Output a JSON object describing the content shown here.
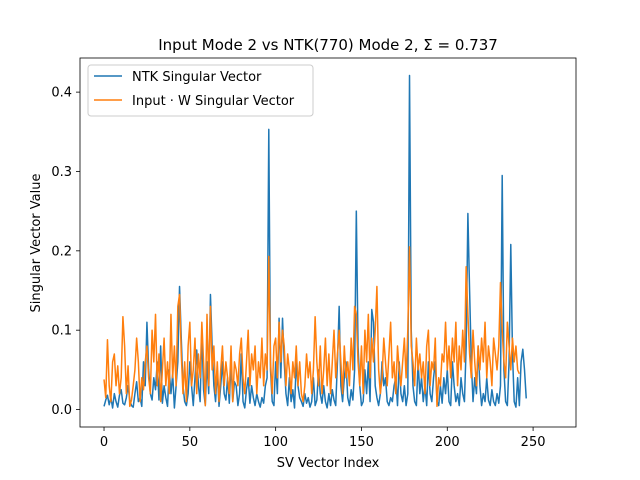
{
  "chart_data": {
    "type": "line",
    "title": "Input Mode 2 vs NTK(770) Mode 2, Σ =  0.737",
    "xlabel": "SV Vector Index",
    "ylabel": "Singular Vector Value",
    "xlim": [
      -14,
      275
    ],
    "ylim": [
      -0.022,
      0.443
    ],
    "xticks": [
      0,
      50,
      100,
      150,
      200,
      250
    ],
    "yticks": [
      0.0,
      0.1,
      0.2,
      0.3,
      0.4
    ],
    "xtick_labels": [
      "0",
      "50",
      "100",
      "150",
      "200",
      "250"
    ],
    "ytick_labels": [
      "0.0",
      "0.1",
      "0.2",
      "0.3",
      "0.4"
    ],
    "legend_position": "upper-left",
    "series": [
      {
        "name": "NTK Singular Vector",
        "color": "#1f77b4",
        "x_start": 0,
        "values": [
          0.004,
          0.012,
          0.018,
          0.006,
          0.015,
          0.002,
          0.02,
          0.01,
          0.003,
          0.018,
          0.025,
          0.008,
          0.006,
          0.015,
          0.03,
          0.012,
          0.005,
          0.003,
          0.02,
          0.035,
          0.01,
          0.015,
          0.004,
          0.06,
          0.03,
          0.11,
          0.05,
          0.02,
          0.012,
          0.04,
          0.025,
          0.06,
          0.012,
          0.08,
          0.008,
          0.03,
          0.015,
          0.004,
          0.05,
          0.02,
          0.045,
          0.002,
          0.03,
          0.06,
          0.155,
          0.09,
          0.03,
          0.01,
          0.005,
          0.02,
          0.06,
          0.03,
          0.005,
          0.04,
          0.075,
          0.03,
          0.01,
          0.1,
          0.025,
          0.005,
          0.06,
          0.02,
          0.145,
          0.08,
          0.03,
          0.01,
          0.05,
          0.004,
          0.03,
          0.06,
          0.02,
          0.012,
          0.04,
          0.008,
          0.06,
          0.01,
          0.035,
          0.03,
          0.005,
          0.02,
          0.07,
          0.01,
          0.002,
          0.025,
          0.04,
          0.008,
          0.03,
          0.015,
          0.005,
          0.02,
          0.01,
          0.003,
          0.015,
          0.008,
          0.03,
          0.04,
          0.353,
          0.05,
          0.01,
          0.005,
          0.06,
          0.02,
          0.115,
          0.04,
          0.115,
          0.06,
          0.02,
          0.005,
          0.04,
          0.01,
          0.025,
          0.002,
          0.06,
          0.03,
          0.015,
          0.01,
          0.004,
          0.02,
          0.008,
          0.015,
          0.003,
          0.01,
          0.04,
          0.005,
          0.012,
          0.05,
          0.02,
          0.008,
          0.03,
          0.01,
          0.002,
          0.02,
          0.005,
          0.025,
          0.012,
          0.005,
          0.06,
          0.13,
          0.03,
          0.01,
          0.04,
          0.06,
          0.015,
          0.005,
          0.025,
          0.012,
          0.05,
          0.25,
          0.08,
          0.03,
          0.005,
          0.01,
          0.05,
          0.02,
          0.06,
          0.01,
          0.126,
          0.11,
          0.03,
          0.015,
          0.005,
          0.02,
          0.06,
          0.03,
          0.04,
          0.01,
          0.005,
          0.015,
          0.01,
          0.03,
          0.04,
          0.005,
          0.06,
          0.02,
          0.01,
          0.03,
          0.005,
          0.02,
          0.421,
          0.1,
          0.03,
          0.01,
          0.005,
          0.06,
          0.02,
          0.04,
          0.01,
          0.03,
          0.005,
          0.06,
          0.02,
          0.01,
          0.04,
          0.06,
          0.01,
          0.005,
          0.03,
          0.008,
          0.04,
          0.02,
          0.05,
          0.01,
          0.005,
          0.06,
          0.03,
          0.01,
          0.02,
          0.005,
          0.04,
          0.02,
          0.01,
          0.08,
          0.247,
          0.15,
          0.06,
          0.01,
          0.04,
          0.02,
          0.08,
          0.03,
          0.005,
          0.02,
          0.01,
          0.04,
          0.012,
          0.005,
          0.025,
          0.01,
          0.005,
          0.02,
          0.008,
          0.03,
          0.295,
          0.05,
          0.01,
          0.005,
          0.06,
          0.208,
          0.07,
          0.01,
          0.003,
          0.04,
          0.005,
          0.06,
          0.076,
          0.05,
          0.014
        ]
      },
      {
        "name": "Input · W Singular Vector",
        "color": "#ff7f0e",
        "x_start": 0,
        "values": [
          0.038,
          0.015,
          0.088,
          0.03,
          0.01,
          0.06,
          0.07,
          0.03,
          0.055,
          0.02,
          0.04,
          0.117,
          0.08,
          0.02,
          0.055,
          0.004,
          0.012,
          0.03,
          0.05,
          0.09,
          0.06,
          0.01,
          0.04,
          0.025,
          0.06,
          0.08,
          0.04,
          0.02,
          0.1,
          0.06,
          0.12,
          0.03,
          0.07,
          0.01,
          0.05,
          0.09,
          0.03,
          0.06,
          0.02,
          0.12,
          0.04,
          0.08,
          0.03,
          0.13,
          0.145,
          0.07,
          0.02,
          0.06,
          0.01,
          0.08,
          0.11,
          0.03,
          0.05,
          0.09,
          0.02,
          0.07,
          0.04,
          0.11,
          0.06,
          0.005,
          0.12,
          0.03,
          0.13,
          0.05,
          0.08,
          0.02,
          0.06,
          0.01,
          0.05,
          0.08,
          0.03,
          0.06,
          0.04,
          0.02,
          0.08,
          0.01,
          0.06,
          0.05,
          0.03,
          0.07,
          0.09,
          0.04,
          0.02,
          0.06,
          0.1,
          0.03,
          0.07,
          0.05,
          0.08,
          0.02,
          0.06,
          0.04,
          0.09,
          0.03,
          0.07,
          0.05,
          0.193,
          0.06,
          0.02,
          0.08,
          0.09,
          0.04,
          0.11,
          0.06,
          0.1,
          0.08,
          0.03,
          0.07,
          0.05,
          0.02,
          0.06,
          0.04,
          0.08,
          0.03,
          0.06,
          0.02,
          0.01,
          0.03,
          0.07,
          0.04,
          0.06,
          0.02,
          0.05,
          0.117,
          0.06,
          0.03,
          0.08,
          0.02,
          0.05,
          0.09,
          0.03,
          0.07,
          0.02,
          0.06,
          0.1,
          0.04,
          0.07,
          0.1,
          0.06,
          0.02,
          0.08,
          0.04,
          0.06,
          0.03,
          0.09,
          0.05,
          0.13,
          0.12,
          0.06,
          0.03,
          0.08,
          0.02,
          0.1,
          0.06,
          0.12,
          0.04,
          0.09,
          0.06,
          0.1,
          0.155,
          0.05,
          0.02,
          0.04,
          0.09,
          0.06,
          0.03,
          0.07,
          0.11,
          0.04,
          0.06,
          0.02,
          0.08,
          0.05,
          0.03,
          0.06,
          0.09,
          0.04,
          0.1,
          0.205,
          0.08,
          0.06,
          0.03,
          0.09,
          0.05,
          0.07,
          0.04,
          0.06,
          0.02,
          0.08,
          0.1,
          0.03,
          0.06,
          0.05,
          0.09,
          0.004,
          0.04,
          0.03,
          0.07,
          0.06,
          0.11,
          0.05,
          0.08,
          0.04,
          0.09,
          0.06,
          0.11,
          0.03,
          0.08,
          0.05,
          0.1,
          0.06,
          0.18,
          0.12,
          0.07,
          0.04,
          0.1,
          0.06,
          0.03,
          0.08,
          0.05,
          0.09,
          0.06,
          0.11,
          0.04,
          0.08,
          0.06,
          0.03,
          0.09,
          0.07,
          0.05,
          0.08,
          0.16,
          0.1,
          0.06,
          0.04,
          0.11,
          0.08,
          0.05,
          0.09,
          0.06,
          0.08,
          0.05,
          0.045
        ]
      }
    ]
  }
}
